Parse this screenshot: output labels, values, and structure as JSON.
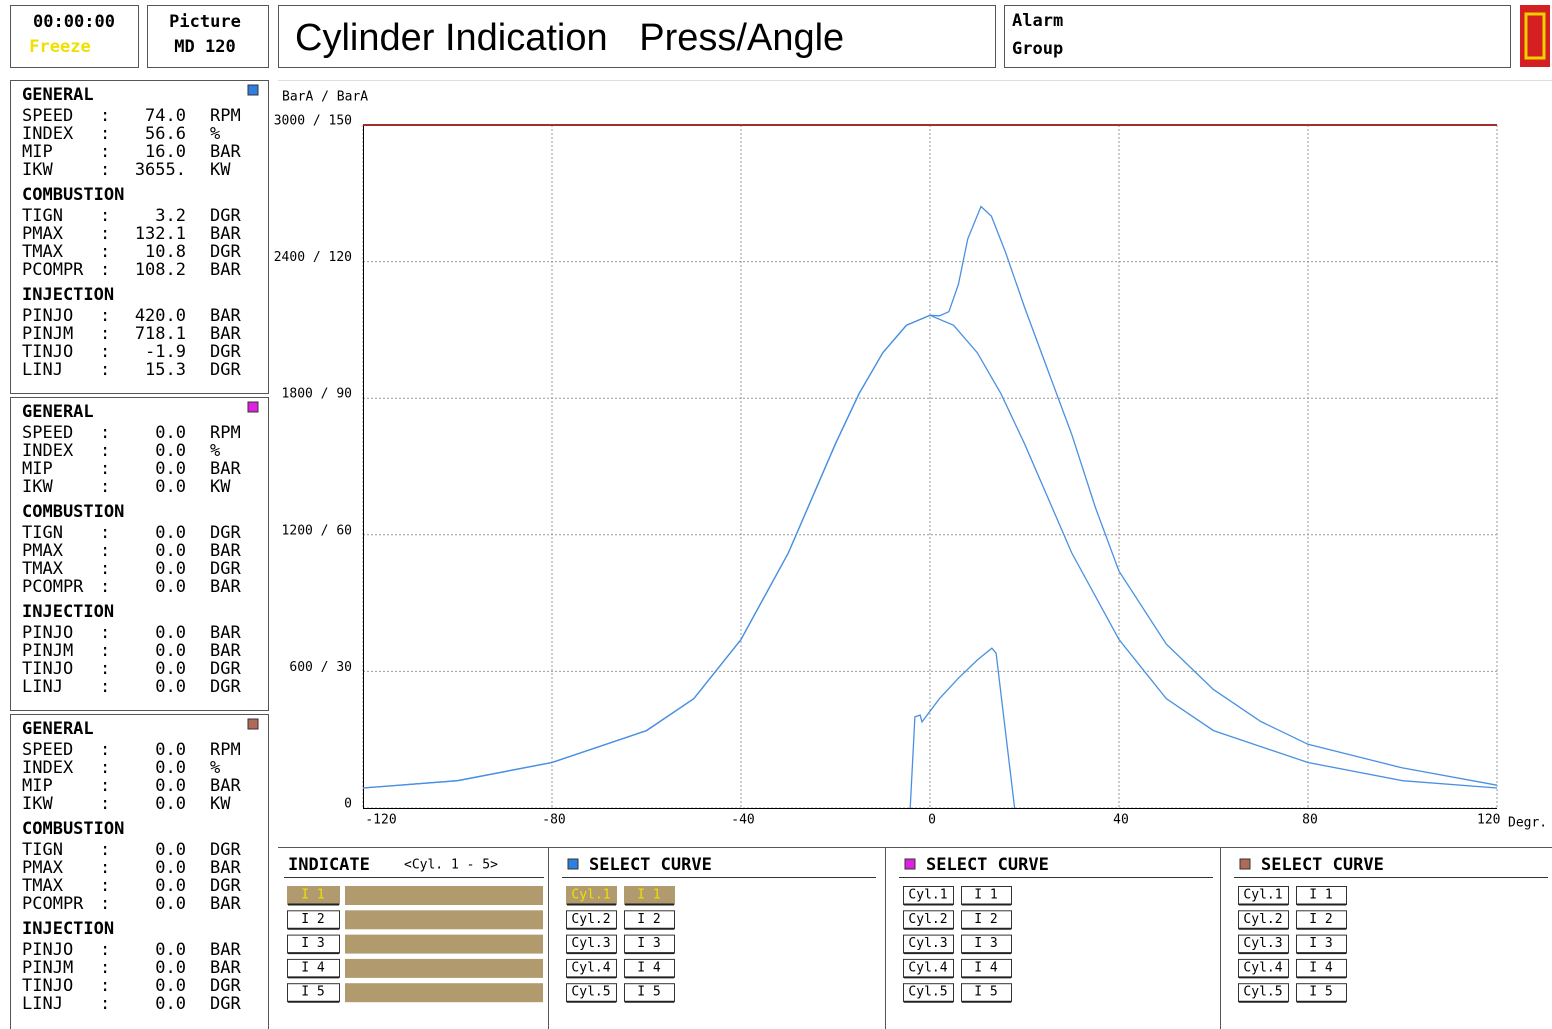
{
  "header": {
    "clock": "00:00:00",
    "status": "Freeze",
    "picture_label": "Picture",
    "picture_id": "MD 120",
    "title": "Cylinder Indication   Press/Angle",
    "alarm": "Alarm",
    "group": "Group"
  },
  "separator": ":",
  "cylinder_panels": [
    {
      "color": "#2f7fe0",
      "sections": [
        {
          "title": "GENERAL",
          "rows": [
            [
              "SPEED",
              "74.0",
              "RPM"
            ],
            [
              "INDEX",
              "56.6",
              "%"
            ],
            [
              "MIP",
              "16.0",
              "BAR"
            ],
            [
              "IKW",
              "3655.",
              "KW"
            ]
          ]
        },
        {
          "title": "COMBUSTION",
          "rows": [
            [
              "TIGN",
              "3.2",
              "DGR"
            ],
            [
              "PMAX",
              "132.1",
              "BAR"
            ],
            [
              "TMAX",
              "10.8",
              "DGR"
            ],
            [
              "PCOMPR",
              "108.2",
              "BAR"
            ]
          ]
        },
        {
          "title": "INJECTION",
          "rows": [
            [
              "PINJO",
              "420.0",
              "BAR"
            ],
            [
              "PINJM",
              "718.1",
              "BAR"
            ],
            [
              "TINJO",
              "-1.9",
              "DGR"
            ],
            [
              "LINJ",
              "15.3",
              "DGR"
            ]
          ]
        }
      ]
    },
    {
      "color": "#e020e0",
      "sections": [
        {
          "title": "GENERAL",
          "rows": [
            [
              "SPEED",
              "0.0",
              "RPM"
            ],
            [
              "INDEX",
              "0.0",
              "%"
            ],
            [
              "MIP",
              "0.0",
              "BAR"
            ],
            [
              "IKW",
              "0.0",
              "KW"
            ]
          ]
        },
        {
          "title": "COMBUSTION",
          "rows": [
            [
              "TIGN",
              "0.0",
              "DGR"
            ],
            [
              "PMAX",
              "0.0",
              "BAR"
            ],
            [
              "TMAX",
              "0.0",
              "DGR"
            ],
            [
              "PCOMPR",
              "0.0",
              "BAR"
            ]
          ]
        },
        {
          "title": "INJECTION",
          "rows": [
            [
              "PINJO",
              "0.0",
              "BAR"
            ],
            [
              "PINJM",
              "0.0",
              "BAR"
            ],
            [
              "TINJO",
              "0.0",
              "DGR"
            ],
            [
              "LINJ",
              "0.0",
              "DGR"
            ]
          ]
        }
      ]
    },
    {
      "color": "#b06a58",
      "sections": [
        {
          "title": "GENERAL",
          "rows": [
            [
              "SPEED",
              "0.0",
              "RPM"
            ],
            [
              "INDEX",
              "0.0",
              "%"
            ],
            [
              "MIP",
              "0.0",
              "BAR"
            ],
            [
              "IKW",
              "0.0",
              "KW"
            ]
          ]
        },
        {
          "title": "COMBUSTION",
          "rows": [
            [
              "TIGN",
              "0.0",
              "DGR"
            ],
            [
              "PMAX",
              "0.0",
              "BAR"
            ],
            [
              "TMAX",
              "0.0",
              "DGR"
            ],
            [
              "PCOMPR",
              "0.0",
              "BAR"
            ]
          ]
        },
        {
          "title": "INJECTION",
          "rows": [
            [
              "PINJO",
              "0.0",
              "BAR"
            ],
            [
              "PINJM",
              "0.0",
              "BAR"
            ],
            [
              "TINJO",
              "0.0",
              "DGR"
            ],
            [
              "LINJ",
              "0.0",
              "DGR"
            ]
          ]
        }
      ]
    }
  ],
  "chart_data": {
    "type": "line",
    "ylabel": "BarA / BarA",
    "xlabel": "Degr.",
    "xlim": [
      -120,
      120
    ],
    "xticks": [
      -120,
      -80,
      -40,
      0,
      40,
      80,
      120
    ],
    "ylim": [
      0,
      150
    ],
    "yticks": [
      0,
      {
        "value": 30,
        "label": "600 / 30"
      },
      {
        "value": 60,
        "label": "1200 / 60"
      },
      {
        "value": 90,
        "label": "1800 / 90"
      },
      {
        "value": 120,
        "label": "2400 / 120"
      },
      {
        "value": 150,
        "label": "3000 / 150"
      }
    ],
    "grid": true,
    "series": [
      {
        "color": "#4a90e2",
        "x": [
          -120,
          -100,
          -80,
          -60,
          -50,
          -40,
          -30,
          -20,
          -15,
          -10,
          -5,
          0,
          5,
          10,
          15,
          20,
          30,
          40,
          50,
          60,
          80,
          100,
          120
        ],
        "values": [
          4.4,
          6,
          10,
          17,
          24,
          37,
          56,
          80,
          91,
          100,
          106,
          108.2,
          106,
          100,
          91,
          80,
          56,
          37,
          24,
          17,
          10,
          6,
          4.4
        ]
      },
      {
        "color": "#4a90e2",
        "x": [
          -120,
          -100,
          -80,
          -60,
          -50,
          -40,
          -30,
          -20,
          -15,
          -10,
          -5,
          0,
          2,
          4,
          6,
          8,
          10.8,
          13,
          16,
          20,
          25,
          30,
          35,
          40,
          50,
          60,
          70,
          80,
          100,
          120
        ],
        "values": [
          4.4,
          6,
          10,
          17,
          24,
          37,
          56,
          80,
          91,
          100,
          106,
          108.2,
          108.1,
          109,
          115,
          125,
          132.1,
          130,
          122,
          110,
          96,
          82,
          66,
          52,
          36,
          26,
          19,
          14,
          8.8,
          5
        ]
      },
      {
        "color": "#4a90e2",
        "x": [
          -4.2,
          -3.2,
          -2.1,
          -1.7,
          2,
          6,
          10,
          13.1,
          14,
          17.9
        ],
        "values": [
          0,
          20,
          20.4,
          18.9,
          24,
          28.5,
          32.5,
          35.1,
          34,
          0
        ]
      }
    ]
  },
  "indicate": {
    "title": "INDICATE",
    "range": "<Cyl. 1 - 5>",
    "buttons": [
      "I 1",
      "I 2",
      "I 3",
      "I 4",
      "I 5"
    ],
    "selected": 0
  },
  "select_curve": [
    {
      "color": "#2f7fe0",
      "title": "SELECT CURVE",
      "cylinders": [
        "Cyl.1",
        "Cyl.2",
        "Cyl.3",
        "Cyl.4",
        "Cyl.5"
      ],
      "indications": [
        "I 1",
        "I 2",
        "I 3",
        "I 4",
        "I 5"
      ],
      "selected": 0
    },
    {
      "color": "#e020e0",
      "title": "SELECT CURVE",
      "cylinders": [
        "Cyl.1",
        "Cyl.2",
        "Cyl.3",
        "Cyl.4",
        "Cyl.5"
      ],
      "indications": [
        "I 1",
        "I 2",
        "I 3",
        "I 4",
        "I 5"
      ],
      "selected": null
    },
    {
      "color": "#b06a58",
      "title": "SELECT CURVE",
      "cylinders": [
        "Cyl.1",
        "Cyl.2",
        "Cyl.3",
        "Cyl.4",
        "Cyl.5"
      ],
      "indications": [
        "I 1",
        "I 2",
        "I 3",
        "I 4",
        "I 5"
      ],
      "selected": null
    }
  ]
}
